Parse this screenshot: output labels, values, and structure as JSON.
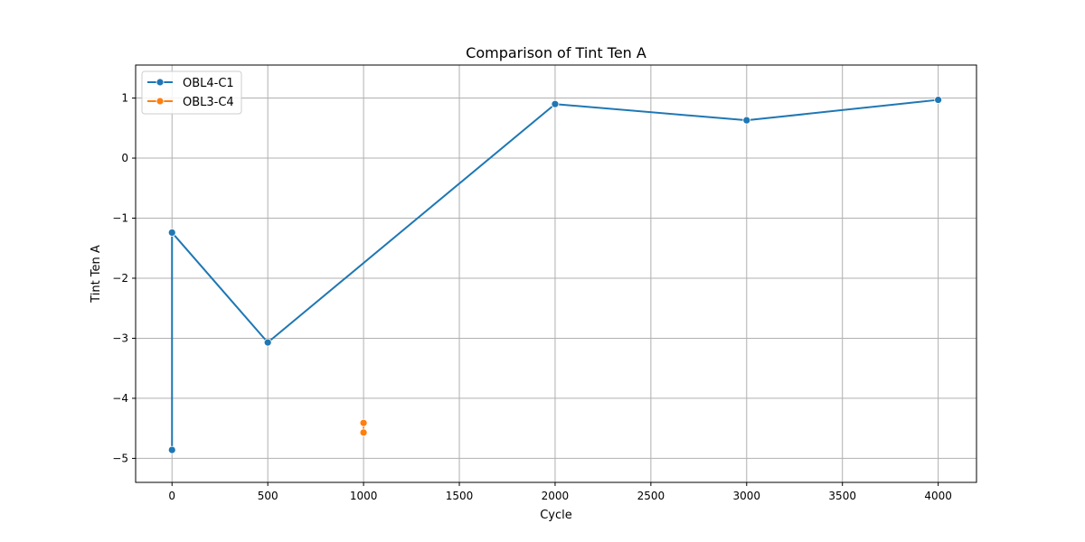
{
  "chart_data": {
    "type": "line",
    "title": "Comparison of Tint Ten A",
    "xlabel": "Cycle",
    "ylabel": "Tint Ten A",
    "xlim": [
      -190,
      4200
    ],
    "ylim": [
      -5.4,
      1.55
    ],
    "xticks": [
      0,
      500,
      1000,
      1500,
      2000,
      2500,
      3000,
      3500,
      4000
    ],
    "xtick_labels": [
      "0",
      "500",
      "1000",
      "1500",
      "2000",
      "2500",
      "3000",
      "3500",
      "4000"
    ],
    "yticks": [
      -5,
      -4,
      -3,
      -2,
      -1,
      0,
      1
    ],
    "ytick_labels": [
      "−5",
      "−4",
      "−3",
      "−2",
      "−1",
      "0",
      "1"
    ],
    "grid": true,
    "legend_position": "top-left",
    "series": [
      {
        "name": "OBL4-C1",
        "color": "#1f77b4",
        "marker": "circle",
        "points": [
          [
            0,
            -4.86
          ],
          [
            0,
            -1.24
          ],
          [
            500,
            -3.07
          ],
          [
            2000,
            0.9
          ],
          [
            3000,
            0.63
          ],
          [
            4000,
            0.97
          ]
        ]
      },
      {
        "name": "OBL3-C4",
        "color": "#ff7f0e",
        "marker": "circle",
        "points": [
          [
            1000,
            -4.41
          ],
          [
            1000,
            -4.57
          ]
        ]
      }
    ]
  }
}
